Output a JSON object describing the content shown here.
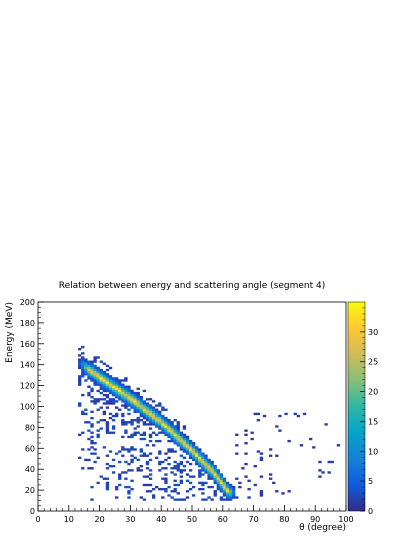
{
  "chart_data": {
    "type": "heatmap",
    "title": "Relation between energy and scattering angle (segment 4)",
    "xlabel": "θ (degree)",
    "ylabel": "Energy (MeV)",
    "xlim": [
      0,
      100
    ],
    "ylim": [
      0,
      200
    ],
    "x_ticks": [
      "0",
      "10",
      "20",
      "30",
      "40",
      "50",
      "60",
      "70",
      "80",
      "90",
      "100"
    ],
    "y_ticks": [
      "0",
      "20",
      "40",
      "60",
      "80",
      "100",
      "120",
      "140",
      "160",
      "180",
      "200"
    ],
    "z_range": [
      0,
      35
    ],
    "z_ticks": [
      "0",
      "5",
      "10",
      "15",
      "20",
      "25",
      "30"
    ],
    "bin_size": {
      "x": 1,
      "y": 2
    },
    "colormap": [
      "#352a87",
      "#0f5cdd",
      "#1481d6",
      "#06a4ca",
      "#2eb7a4",
      "#87bf77",
      "#d1bb59",
      "#fec832",
      "#f9fb0e"
    ],
    "band": [
      {
        "theta": 14,
        "energy": 141
      },
      {
        "theta": 20,
        "energy": 128
      },
      {
        "theta": 30,
        "energy": 108
      },
      {
        "theta": 40,
        "energy": 85
      },
      {
        "theta": 50,
        "energy": 58
      },
      {
        "theta": 57,
        "energy": 37
      },
      {
        "theta": 62,
        "energy": 18
      }
    ],
    "grid": false,
    "legend": "colorbar-right"
  }
}
